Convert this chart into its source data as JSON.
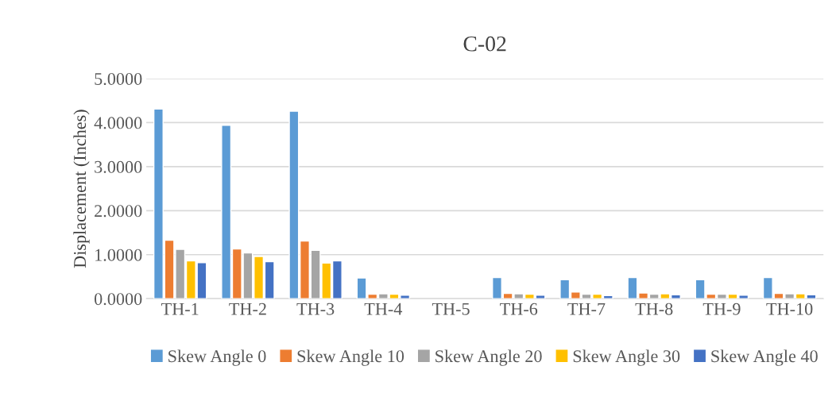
{
  "chart_data": {
    "type": "bar",
    "title": "C-02",
    "ylabel": "Displacement (Inches)",
    "categories": [
      "TH-1",
      "TH-2",
      "TH-3",
      "TH-4",
      "TH-5",
      "TH-6",
      "TH-7",
      "TH-8",
      "TH-9",
      "TH-10"
    ],
    "series": [
      {
        "name": "Skew Angle 0",
        "color": "#5b9bd5",
        "values": [
          4.31,
          3.94,
          4.26,
          0.47,
          null,
          0.48,
          0.43,
          0.48,
          0.43,
          0.48
        ]
      },
      {
        "name": "Skew Angle 10",
        "color": "#ed7d31",
        "values": [
          1.33,
          1.13,
          1.31,
          0.1,
          null,
          0.12,
          0.15,
          0.13,
          0.1,
          0.12
        ]
      },
      {
        "name": "Skew Angle 20",
        "color": "#a5a5a5",
        "values": [
          1.12,
          1.04,
          1.1,
          0.11,
          null,
          0.11,
          0.1,
          0.1,
          0.1,
          0.11
        ]
      },
      {
        "name": "Skew Angle 30",
        "color": "#ffc000",
        "values": [
          0.86,
          0.96,
          0.81,
          0.1,
          null,
          0.1,
          0.1,
          0.11,
          0.1,
          0.11
        ]
      },
      {
        "name": "Skew Angle 40",
        "color": "#4472c4",
        "values": [
          0.82,
          0.84,
          0.86,
          0.08,
          null,
          0.08,
          0.07,
          0.09,
          0.08,
          0.09
        ]
      }
    ],
    "ylim": [
      0,
      5
    ],
    "yticks": [
      {
        "value": 0,
        "label": "0.0000"
      },
      {
        "value": 1,
        "label": "1.0000"
      },
      {
        "value": 2,
        "label": "2.0000"
      },
      {
        "value": 3,
        "label": "3.0000"
      },
      {
        "value": 4,
        "label": "4.0000"
      },
      {
        "value": 5,
        "label": "5.0000"
      }
    ],
    "grid": "y",
    "legend": "bottom"
  }
}
